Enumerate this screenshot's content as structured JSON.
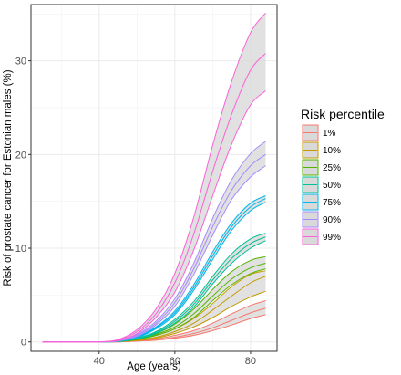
{
  "chart_data": {
    "type": "line",
    "xlabel": "Age (years)",
    "ylabel": "Risk of prostate cancer for Estonian males (%)",
    "xlim": [
      22,
      87
    ],
    "ylim": [
      -1,
      36
    ],
    "xticks": [
      40,
      60,
      80
    ],
    "yticks": [
      0,
      10,
      20,
      30
    ],
    "grid": true,
    "band_fill": "#d9d9d9",
    "panel_border": "#333333",
    "legend": {
      "title": "Risk percentile",
      "position": "right"
    },
    "x": [
      25,
      30,
      35,
      40,
      45,
      50,
      55,
      60,
      65,
      70,
      75,
      80,
      84
    ],
    "series": [
      {
        "name": "1%",
        "color": "#f8766d",
        "mid": [
          0,
          0,
          0,
          0,
          0,
          0.1,
          0.2,
          0.5,
          0.9,
          1.5,
          2.3,
          3.1,
          3.6
        ],
        "lower": [
          0,
          0,
          0,
          0,
          0,
          0.1,
          0.2,
          0.4,
          0.7,
          1.2,
          1.8,
          2.5,
          2.9
        ],
        "upper": [
          0,
          0,
          0,
          0,
          0.05,
          0.15,
          0.3,
          0.7,
          1.2,
          2.0,
          3.0,
          3.9,
          4.4
        ]
      },
      {
        "name": "10%",
        "color": "#c49a00",
        "mid": [
          0,
          0,
          0,
          0,
          0.05,
          0.2,
          0.5,
          1.1,
          2.0,
          3.4,
          4.9,
          6.3,
          7.0
        ],
        "lower": [
          0,
          0,
          0,
          0,
          0.05,
          0.15,
          0.4,
          0.9,
          1.6,
          2.6,
          3.8,
          4.8,
          5.4
        ],
        "upper": [
          0,
          0,
          0,
          0,
          0.05,
          0.25,
          0.7,
          1.4,
          2.5,
          4.1,
          5.9,
          7.2,
          7.6
        ]
      },
      {
        "name": "25%",
        "color": "#53b400",
        "mid": [
          0,
          0,
          0,
          0,
          0.05,
          0.3,
          0.8,
          1.6,
          3.0,
          4.9,
          6.7,
          7.9,
          8.4
        ],
        "lower": [
          0,
          0,
          0,
          0,
          0.05,
          0.25,
          0.7,
          1.4,
          2.6,
          4.4,
          6.1,
          7.3,
          7.8
        ],
        "upper": [
          0,
          0,
          0,
          0,
          0.05,
          0.35,
          0.9,
          1.9,
          3.5,
          5.6,
          7.5,
          8.7,
          9.1
        ]
      },
      {
        "name": "50%",
        "color": "#00c094",
        "mid": [
          0,
          0,
          0,
          0,
          0.05,
          0.35,
          1.0,
          2.2,
          4.0,
          6.6,
          8.9,
          10.5,
          11.2
        ],
        "lower": [
          0,
          0,
          0,
          0,
          0.05,
          0.3,
          0.9,
          2.0,
          3.7,
          6.2,
          8.4,
          10.0,
          10.8
        ],
        "upper": [
          0,
          0,
          0,
          0,
          0.05,
          0.4,
          1.1,
          2.4,
          4.3,
          7.0,
          9.4,
          11.0,
          11.6
        ]
      },
      {
        "name": "75%",
        "color": "#00b6eb",
        "mid": [
          0,
          0,
          0,
          0,
          0.1,
          0.5,
          1.5,
          3.1,
          5.8,
          9.2,
          12.3,
          14.4,
          15.3
        ],
        "lower": [
          0,
          0,
          0,
          0,
          0.1,
          0.45,
          1.4,
          2.9,
          5.5,
          8.8,
          11.9,
          14.0,
          14.9
        ],
        "upper": [
          0,
          0,
          0,
          0,
          0.1,
          0.55,
          1.6,
          3.3,
          6.1,
          9.6,
          12.7,
          14.8,
          15.6
        ]
      },
      {
        "name": "90%",
        "color": "#a58aff",
        "mid": [
          0,
          0,
          0,
          0,
          0.1,
          0.7,
          2.0,
          4.2,
          7.8,
          12.3,
          16.2,
          18.8,
          20.0
        ],
        "lower": [
          0,
          0,
          0,
          0,
          0.1,
          0.6,
          1.8,
          3.8,
          7.2,
          11.4,
          15.2,
          17.6,
          18.8
        ],
        "upper": [
          0,
          0,
          0,
          0,
          0.1,
          0.8,
          2.2,
          4.6,
          8.4,
          13.2,
          17.3,
          20.1,
          21.4
        ]
      },
      {
        "name": "99%",
        "color": "#fb61d7",
        "mid": [
          0,
          0,
          0,
          0,
          0.2,
          1.1,
          3.0,
          6.3,
          11.5,
          18.2,
          24.3,
          29.0,
          30.8
        ],
        "lower": [
          0,
          0,
          0,
          0,
          0.15,
          0.9,
          2.6,
          5.3,
          9.8,
          15.6,
          21.1,
          25.3,
          26.8
        ],
        "upper": [
          0,
          0,
          0,
          0,
          0.25,
          1.3,
          3.5,
          7.3,
          13.3,
          21.0,
          27.8,
          33.0,
          35.1
        ]
      }
    ]
  }
}
